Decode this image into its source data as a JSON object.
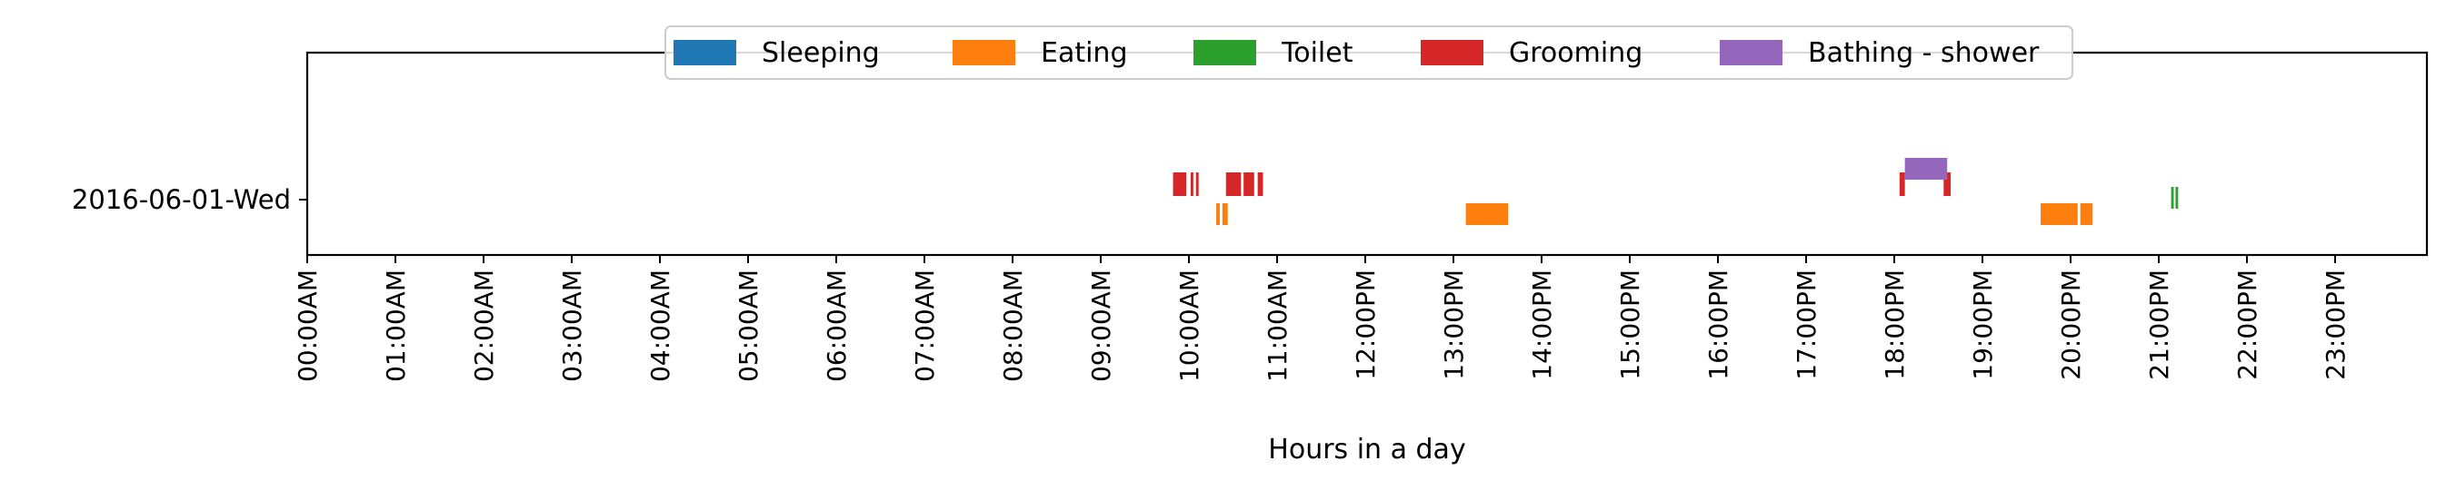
{
  "chart_data": {
    "type": "timeline",
    "xlabel": "Hours in a day",
    "xlim": [
      0,
      24
    ],
    "x_ticks": [
      {
        "value": 0,
        "label": "00:00AM"
      },
      {
        "value": 1,
        "label": "01:00AM"
      },
      {
        "value": 2,
        "label": "02:00AM"
      },
      {
        "value": 3,
        "label": "03:00AM"
      },
      {
        "value": 4,
        "label": "04:00AM"
      },
      {
        "value": 5,
        "label": "05:00AM"
      },
      {
        "value": 6,
        "label": "06:00AM"
      },
      {
        "value": 7,
        "label": "07:00AM"
      },
      {
        "value": 8,
        "label": "08:00AM"
      },
      {
        "value": 9,
        "label": "09:00AM"
      },
      {
        "value": 10,
        "label": "10:00AM"
      },
      {
        "value": 11,
        "label": "11:00AM"
      },
      {
        "value": 12,
        "label": "12:00PM"
      },
      {
        "value": 13,
        "label": "13:00PM"
      },
      {
        "value": 14,
        "label": "14:00PM"
      },
      {
        "value": 15,
        "label": "15:00PM"
      },
      {
        "value": 16,
        "label": "16:00PM"
      },
      {
        "value": 17,
        "label": "17:00PM"
      },
      {
        "value": 18,
        "label": "18:00PM"
      },
      {
        "value": 19,
        "label": "19:00PM"
      },
      {
        "value": 20,
        "label": "20:00PM"
      },
      {
        "value": 21,
        "label": "21:00PM"
      },
      {
        "value": 22,
        "label": "22:00PM"
      },
      {
        "value": 23,
        "label": "23:00PM"
      }
    ],
    "y_categories": [
      "2016-06-01-Wed"
    ],
    "legend_position": "top-center",
    "series": [
      {
        "name": "Sleeping",
        "color": "#1f77b4",
        "intervals": []
      },
      {
        "name": "Eating",
        "color": "#ff7f0e",
        "intervals": [
          [
            10.31,
            10.35
          ],
          [
            10.38,
            10.44
          ],
          [
            13.14,
            13.62
          ],
          [
            19.66,
            20.08
          ],
          [
            20.11,
            20.25
          ]
        ]
      },
      {
        "name": "Toilet",
        "color": "#2ca02c",
        "intervals": [
          [
            21.14,
            21.17
          ],
          [
            21.19,
            21.22
          ]
        ]
      },
      {
        "name": "Grooming",
        "color": "#d62728",
        "intervals": [
          [
            9.82,
            9.97
          ],
          [
            10.02,
            10.05
          ],
          [
            10.08,
            10.11
          ],
          [
            10.42,
            10.59
          ],
          [
            10.62,
            10.74
          ],
          [
            10.78,
            10.84
          ],
          [
            18.06,
            18.12
          ],
          [
            18.56,
            18.64
          ]
        ]
      },
      {
        "name": "Bathing - shower",
        "color": "#9467bd",
        "intervals": [
          [
            18.12,
            18.6
          ]
        ]
      }
    ]
  }
}
